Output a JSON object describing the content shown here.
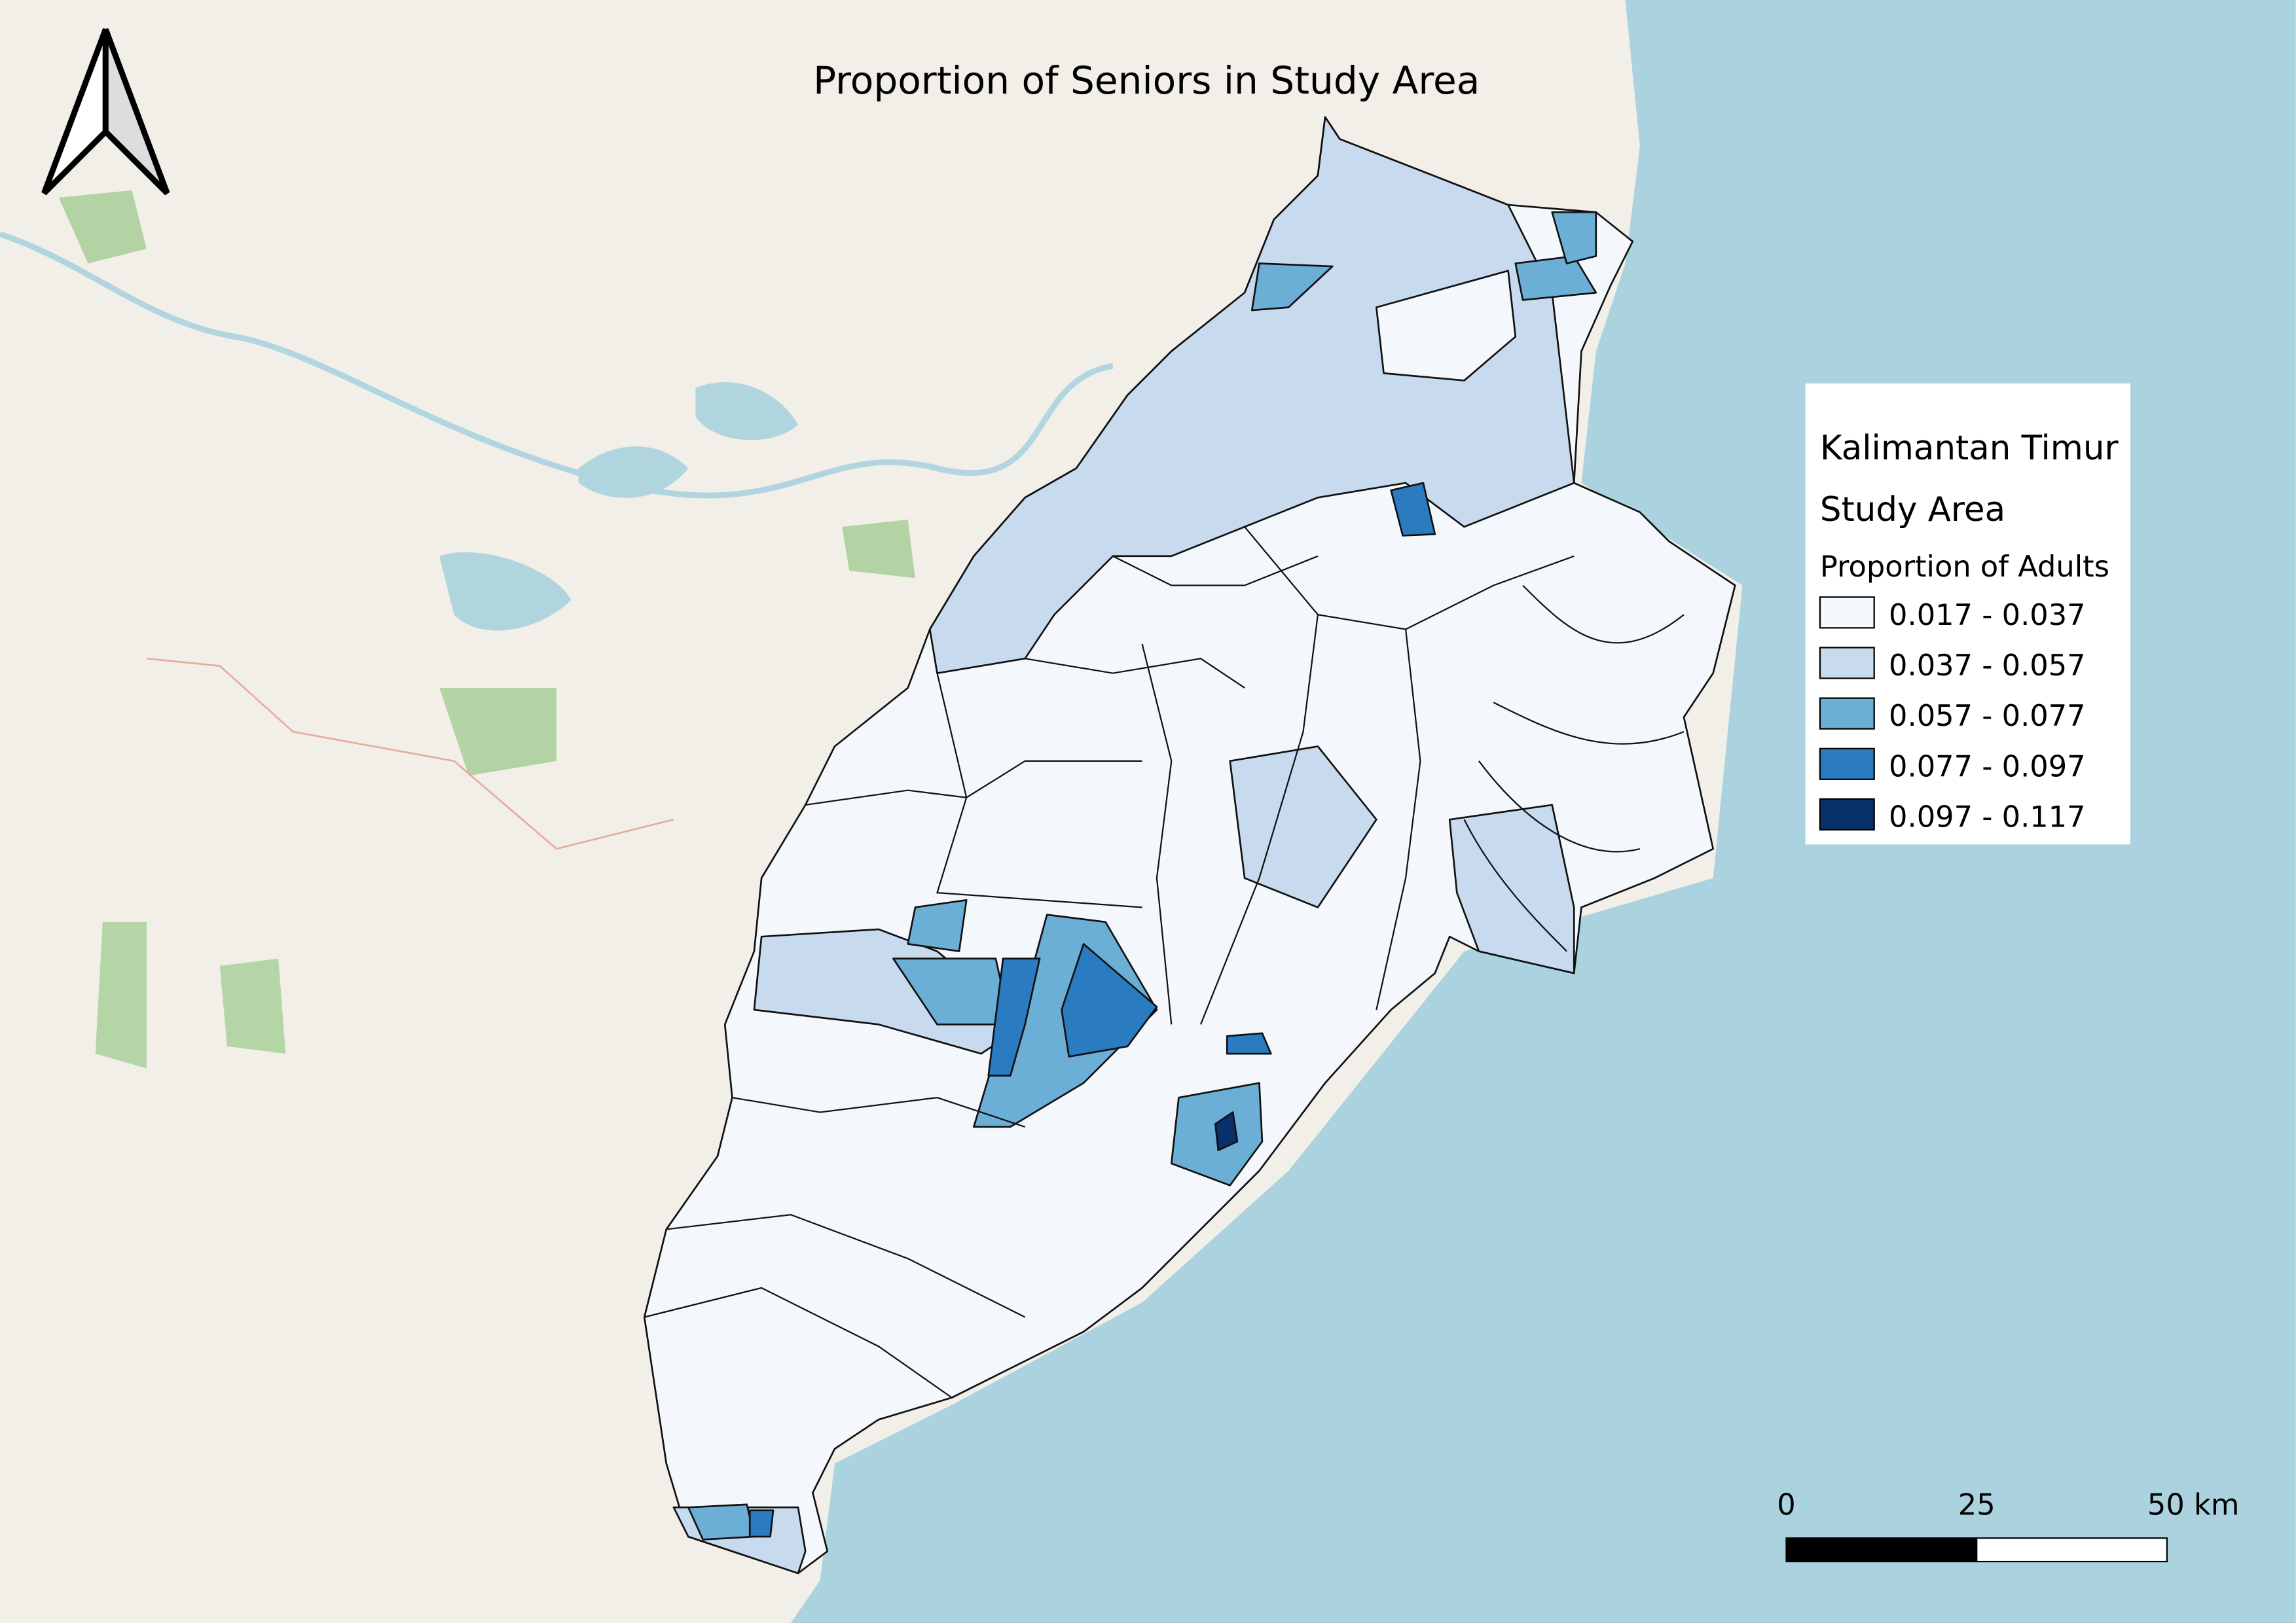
{
  "title": "Proportion of Seniors in Study Area",
  "legend": {
    "title_lines": [
      "Kalimantan Timur",
      "Study Area"
    ],
    "subtitle": "Proportion of Adults",
    "classes": [
      {
        "label": "0.017 - 0.037",
        "color": "#f4f8fd"
      },
      {
        "label": "0.037 - 0.057",
        "color": "#c7daee"
      },
      {
        "label": "0.057 - 0.077",
        "color": "#6baed6"
      },
      {
        "label": "0.077 - 0.097",
        "color": "#2b7bc0"
      },
      {
        "label": "0.097 - 0.117",
        "color": "#08306b"
      }
    ]
  },
  "scale_bar": {
    "labels": [
      "0",
      "25",
      "50 km"
    ]
  }
}
